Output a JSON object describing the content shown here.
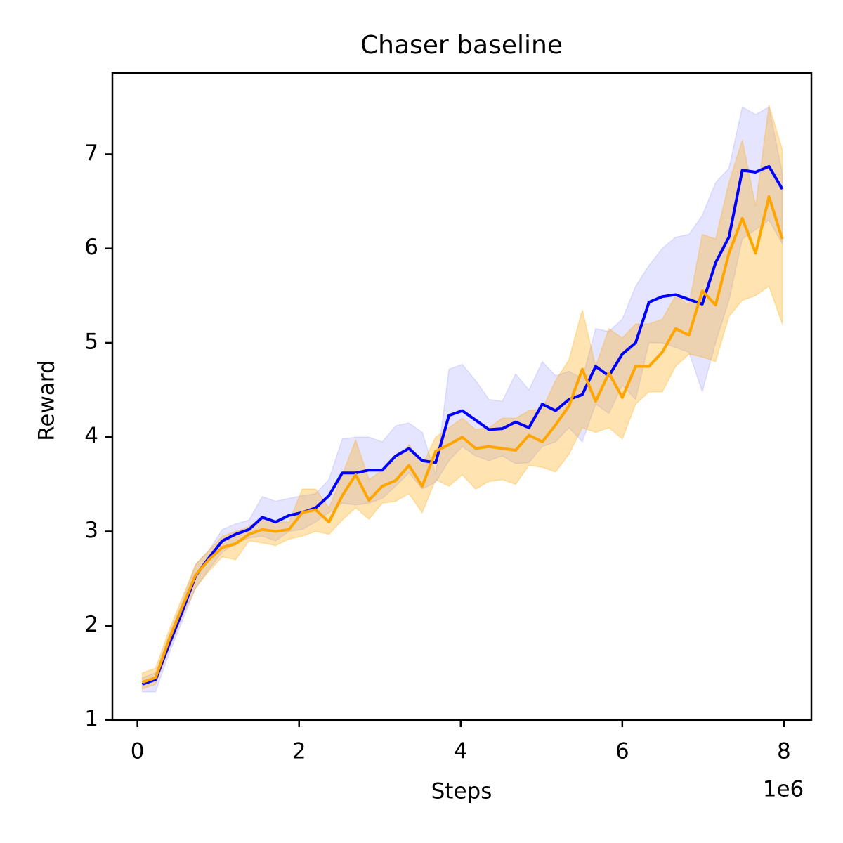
{
  "chart_data": {
    "type": "line",
    "title": "Chaser baseline",
    "x_label": "Steps",
    "y_label": "Reward",
    "x_offset_label": "1e6",
    "x": [
      0.06,
      0.225,
      0.39,
      0.555,
      0.72,
      0.885,
      1.05,
      1.215,
      1.38,
      1.545,
      1.71,
      1.875,
      2.04,
      2.205,
      2.37,
      2.535,
      2.7,
      2.865,
      3.03,
      3.195,
      3.36,
      3.525,
      3.69,
      3.855,
      4.02,
      4.185,
      4.35,
      4.515,
      4.68,
      4.845,
      5.01,
      5.175,
      5.34,
      5.505,
      5.67,
      5.835,
      6.0,
      6.165,
      6.33,
      6.495,
      6.66,
      6.825,
      6.99,
      7.155,
      7.32,
      7.485,
      7.65,
      7.815,
      7.98
    ],
    "series": [
      {
        "color": "#0000ff",
        "band_opacity": 0.1,
        "values": [
          1.38,
          1.43,
          1.8,
          2.15,
          2.53,
          2.72,
          2.9,
          2.97,
          3.02,
          3.15,
          3.1,
          3.17,
          3.2,
          3.25,
          3.38,
          3.62,
          3.62,
          3.65,
          3.65,
          3.8,
          3.88,
          3.75,
          3.73,
          4.23,
          4.28,
          4.18,
          4.08,
          4.09,
          4.16,
          4.1,
          4.35,
          4.28,
          4.4,
          4.45,
          4.75,
          4.65,
          4.88,
          5.0,
          5.43,
          5.49,
          5.51,
          5.46,
          5.41,
          5.85,
          6.12,
          6.83,
          6.81,
          6.87,
          6.63
        ],
        "upper": [
          1.45,
          1.5,
          1.9,
          2.25,
          2.65,
          2.8,
          3.02,
          3.08,
          3.12,
          3.37,
          3.32,
          3.35,
          3.38,
          3.4,
          3.55,
          3.98,
          4.0,
          4.0,
          3.95,
          4.12,
          4.15,
          4.05,
          3.6,
          4.72,
          4.77,
          4.6,
          4.4,
          4.38,
          4.67,
          4.5,
          4.8,
          4.65,
          4.7,
          4.62,
          5.15,
          5.12,
          5.25,
          5.6,
          5.82,
          6.0,
          6.12,
          6.15,
          6.35,
          6.7,
          6.85,
          7.5,
          7.42,
          7.5,
          6.8
        ],
        "lower": [
          1.3,
          1.3,
          1.7,
          2.05,
          2.4,
          2.6,
          2.78,
          2.87,
          2.93,
          2.95,
          2.9,
          3.0,
          3.02,
          3.1,
          3.2,
          3.3,
          3.28,
          3.3,
          3.35,
          3.48,
          3.62,
          3.45,
          3.52,
          3.75,
          3.9,
          3.8,
          3.75,
          3.8,
          3.72,
          3.73,
          3.9,
          3.95,
          4.1,
          3.95,
          4.35,
          4.25,
          4.55,
          4.4,
          5.0,
          5.0,
          4.95,
          4.9,
          4.48,
          5.0,
          5.45,
          6.1,
          6.2,
          6.3,
          6.05
        ]
      },
      {
        "color": "#ffa500",
        "band_opacity": 0.3,
        "values": [
          1.4,
          1.45,
          1.85,
          2.2,
          2.54,
          2.7,
          2.83,
          2.87,
          2.97,
          3.02,
          3.0,
          3.02,
          3.2,
          3.23,
          3.1,
          3.38,
          3.6,
          3.33,
          3.48,
          3.54,
          3.7,
          3.48,
          3.85,
          3.92,
          4.0,
          3.88,
          3.9,
          3.88,
          3.86,
          4.02,
          3.95,
          4.13,
          4.33,
          4.72,
          4.38,
          4.68,
          4.42,
          4.75,
          4.75,
          4.9,
          5.15,
          5.08,
          5.55,
          5.4,
          5.95,
          6.32,
          5.95,
          6.55,
          6.1
        ],
        "upper": [
          1.5,
          1.55,
          1.95,
          2.3,
          2.65,
          2.8,
          2.95,
          3.0,
          3.05,
          3.15,
          3.1,
          3.1,
          3.45,
          3.45,
          3.25,
          3.6,
          3.97,
          3.55,
          3.65,
          3.75,
          3.92,
          3.7,
          4.0,
          4.1,
          4.2,
          4.08,
          4.1,
          4.2,
          4.2,
          4.28,
          4.3,
          4.6,
          4.82,
          5.35,
          4.75,
          5.15,
          5.05,
          5.2,
          5.2,
          5.25,
          5.5,
          5.4,
          6.15,
          6.1,
          6.7,
          7.15,
          6.45,
          7.52,
          7.05
        ],
        "lower": [
          1.33,
          1.38,
          1.75,
          2.1,
          2.4,
          2.58,
          2.73,
          2.7,
          2.9,
          2.88,
          2.85,
          2.92,
          2.95,
          3.0,
          2.97,
          3.12,
          3.25,
          3.13,
          3.3,
          3.32,
          3.4,
          3.2,
          3.55,
          3.48,
          3.6,
          3.45,
          3.53,
          3.55,
          3.5,
          3.7,
          3.68,
          3.63,
          3.82,
          4.1,
          4.05,
          4.1,
          3.98,
          4.35,
          4.48,
          4.48,
          4.75,
          4.88,
          4.85,
          4.8,
          5.28,
          5.45,
          5.5,
          5.6,
          5.2
        ]
      }
    ],
    "xlim": [
      -0.31,
      8.34
    ],
    "ylim": [
      1,
      7.86
    ],
    "xticks": [
      0,
      2,
      4,
      6,
      8
    ],
    "yticks": [
      1,
      2,
      3,
      4,
      5,
      6,
      7
    ],
    "grid": false
  }
}
